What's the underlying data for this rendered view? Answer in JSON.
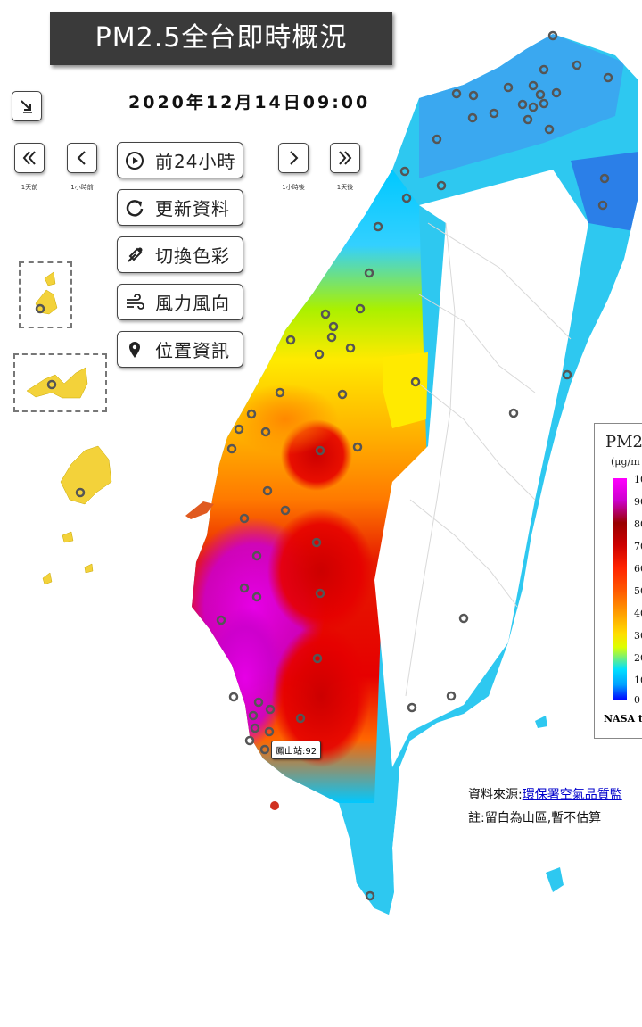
{
  "title": "PM2.5全台即時概況",
  "datetime": "2020年12月14日09:00",
  "nav": {
    "prev_day_caption": "1天前",
    "prev_hour_caption": "1小時前",
    "next_hour_caption": "1小時後",
    "next_day_caption": "1天後"
  },
  "actions": [
    {
      "label": "前24小時",
      "icon": "play-circle-icon"
    },
    {
      "label": "更新資料",
      "icon": "refresh-icon"
    },
    {
      "label": "切換色彩",
      "icon": "eyedropper-icon"
    },
    {
      "label": "風力風向",
      "icon": "wind-icon"
    },
    {
      "label": "位置資訊",
      "icon": "location-pin-icon"
    }
  ],
  "legend": {
    "title": "PM2",
    "unit": "(μg/m",
    "ticks": [
      "10",
      "90",
      "80",
      "70",
      "60",
      "50",
      "40",
      "30",
      "20",
      "10",
      "0"
    ],
    "footer": "NASA t"
  },
  "tooltip": "鳳山站:92",
  "source_prefix": "資料來源:",
  "source_link": "環保署空氣品質監",
  "note": "註:留白為山區,暫不估算",
  "colors": {
    "banner": "#3a3a3a",
    "low": "#00c8ff",
    "mid": "#ffd200",
    "high": "#e60000",
    "very_high": "#cc00cc"
  }
}
